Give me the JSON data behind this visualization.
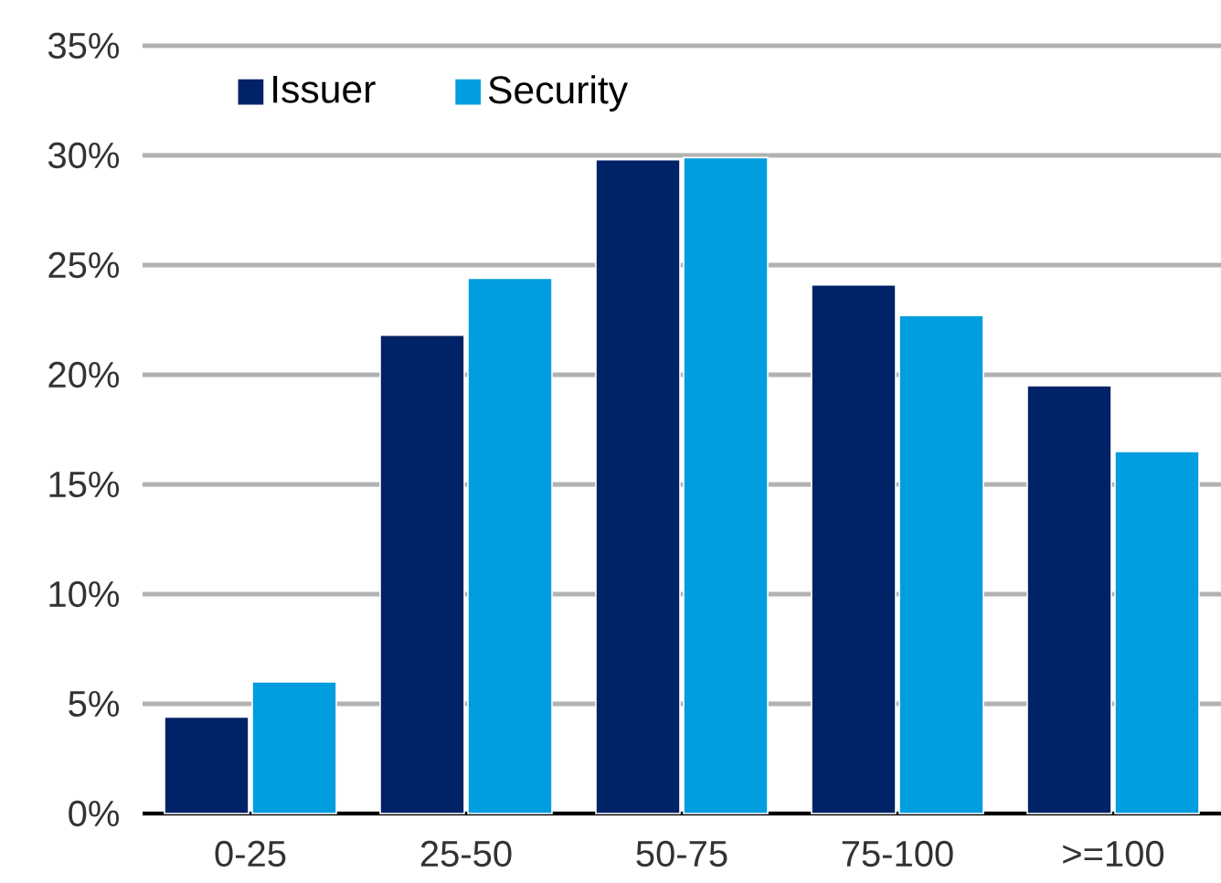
{
  "chart_data": {
    "type": "bar",
    "categories": [
      "0-25",
      "25-50",
      "50-75",
      "75-100",
      ">=100"
    ],
    "series": [
      {
        "name": "Issuer",
        "color": "#002266",
        "values": [
          4.4,
          21.8,
          29.8,
          24.1,
          19.5
        ]
      },
      {
        "name": "Security",
        "color": "#009ddf",
        "values": [
          6.0,
          24.4,
          29.9,
          22.7,
          16.5
        ]
      }
    ],
    "ylim": [
      0,
      35
    ],
    "yticks": [
      {
        "value": 0,
        "label": "0%"
      },
      {
        "value": 5,
        "label": "5%"
      },
      {
        "value": 10,
        "label": "10%"
      },
      {
        "value": 15,
        "label": "15%"
      },
      {
        "value": 20,
        "label": "20%"
      },
      {
        "value": 25,
        "label": "25%"
      },
      {
        "value": 30,
        "label": "30%"
      },
      {
        "value": 35,
        "label": "35%"
      }
    ],
    "grid": "y",
    "legend": "top left"
  }
}
